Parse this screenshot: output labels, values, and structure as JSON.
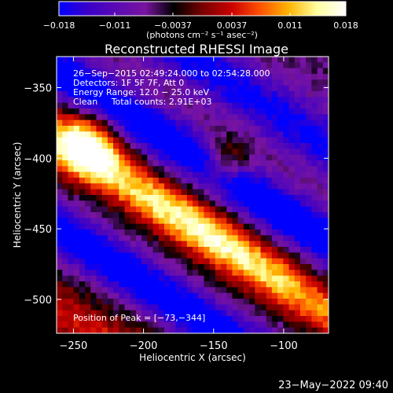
{
  "chart_data": {
    "type": "heatmap",
    "title": "Reconstructed RHESSI Image",
    "xlabel": "Heliocentric X (arcsec)",
    "ylabel": "Heliocentric Y (arcsec)",
    "xlim": [
      -262,
      -68
    ],
    "ylim": [
      -524,
      -328
    ],
    "x_ticks": [
      -250,
      -200,
      -150,
      -100
    ],
    "y_ticks": [
      -350,
      -400,
      -450,
      -500
    ],
    "x_tick_labels": [
      "−250",
      "−200",
      "−150",
      "−100"
    ],
    "y_tick_labels": [
      "−350",
      "−400",
      "−450",
      "−500"
    ],
    "colorbar": {
      "range": [
        -0.018,
        0.018
      ],
      "ticks": [
        -0.018,
        -0.011,
        -0.0037,
        0.0037,
        0.011,
        0.018
      ],
      "tick_labels": [
        "−0.018",
        "−0.011",
        "−0.0037",
        "0.0037",
        "0.011",
        "0.018"
      ],
      "unit_label": "(photons cm⁻² s⁻¹ asec⁻²)"
    },
    "annotations": [
      "26−Sep−2015 02:49:24.000 to 02:54:28.000",
      "Detectors: 1F 5F 7F, Att 0",
      "Energy Range: 12.0 − 25.0 keV",
      "Clean     Total counts: 2.91E+03"
    ],
    "peak_label": "Position of Peak = [−73,−344]",
    "peak": [
      -73,
      -344
    ],
    "colormap_stops": [
      "#0000ff",
      "#3a00c8",
      "#5a0ab4",
      "#7814a0",
      "#000000",
      "#780000",
      "#c80000",
      "#ff5000",
      "#ffb400",
      "#ffffa0",
      "#ffffff"
    ]
  },
  "footer_date": "23−May−2022 09:40"
}
